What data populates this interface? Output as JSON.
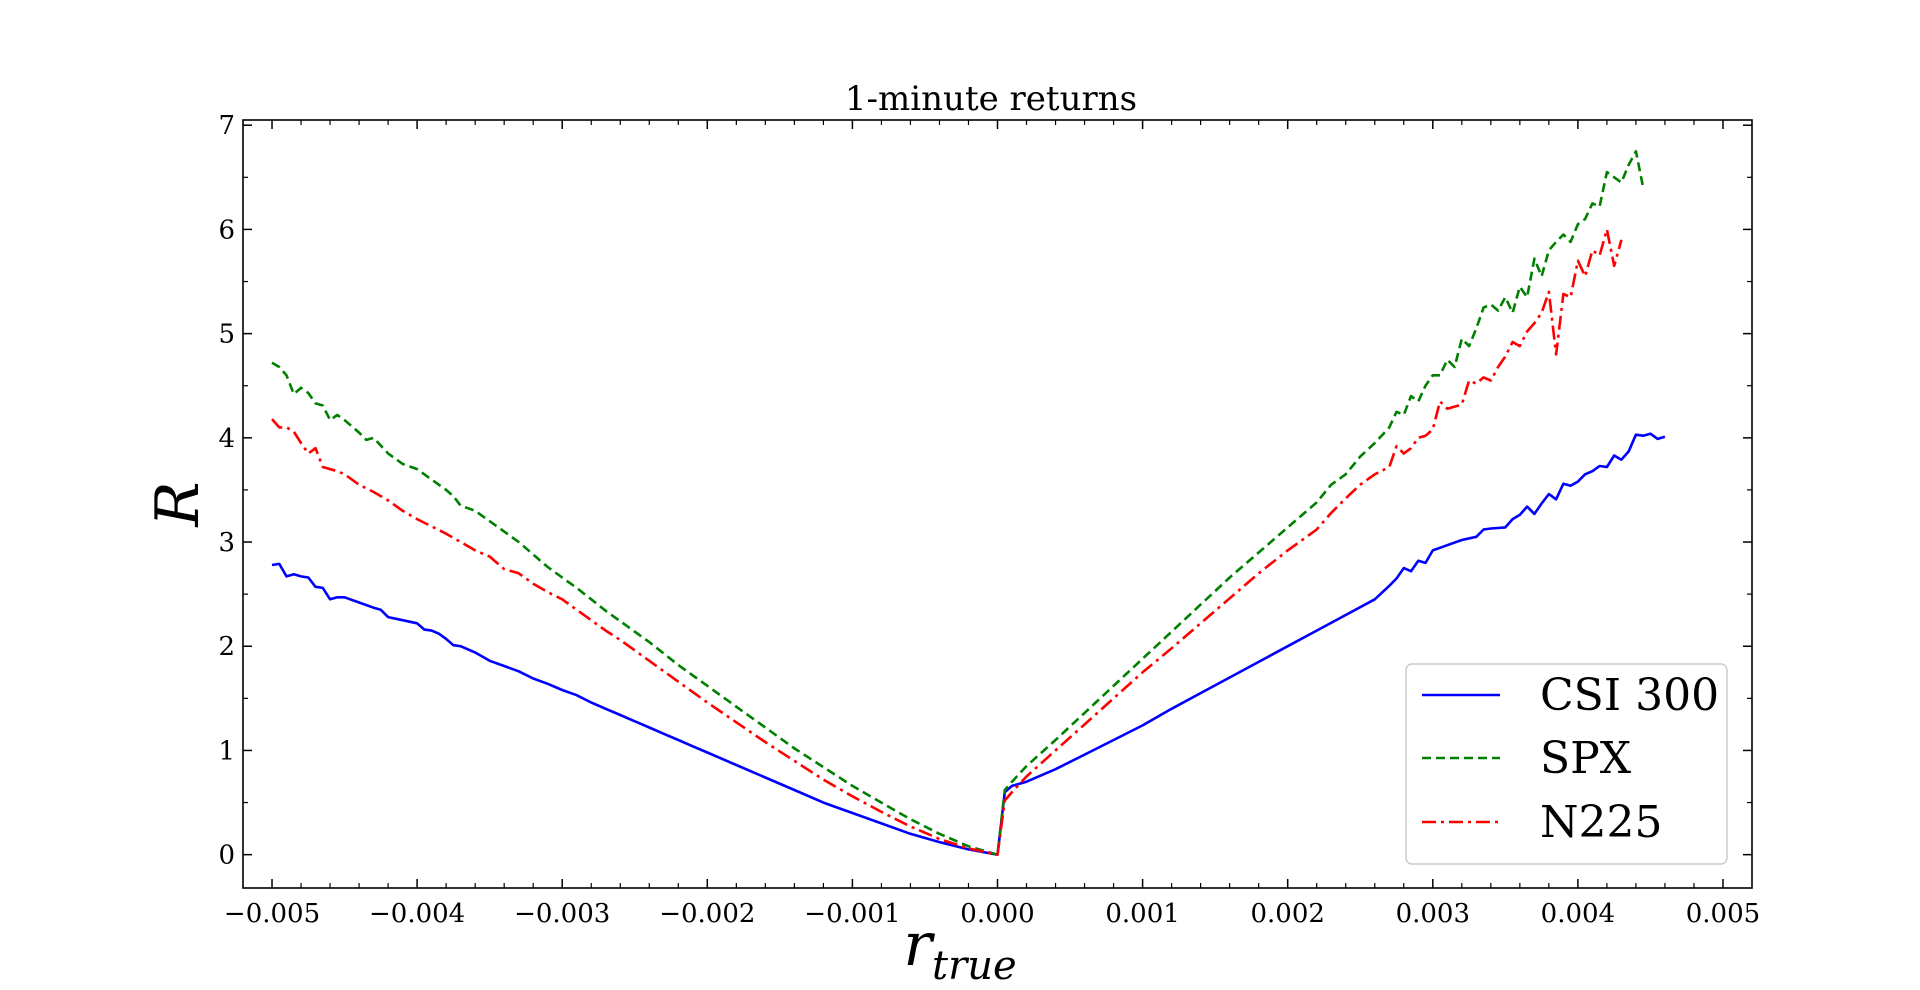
{
  "chart_data": {
    "type": "line",
    "title": "1-minute returns",
    "xlabel_main": "r",
    "xlabel_sub": "true",
    "ylabel": "R",
    "xlim": [
      -0.0052,
      0.0052
    ],
    "ylim": [
      -0.32,
      7.05
    ],
    "x_tick_values": [
      -0.005,
      -0.004,
      -0.003,
      -0.002,
      -0.001,
      0.0,
      0.001,
      0.002,
      0.003,
      0.004,
      0.005
    ],
    "x_tick_labels": [
      "−0.005",
      "−0.004",
      "−0.003",
      "−0.002",
      "−0.001",
      "0.000",
      "0.001",
      "0.002",
      "0.003",
      "0.004",
      "0.005"
    ],
    "y_tick_values": [
      0,
      1,
      2,
      3,
      4,
      5,
      6,
      7
    ],
    "y_tick_labels": [
      "0",
      "1",
      "2",
      "3",
      "4",
      "5",
      "6",
      "7"
    ],
    "grid": false,
    "legend_position": "lower-right",
    "series": [
      {
        "name": "CSI 300",
        "color": "#0000ff",
        "dash": "solid",
        "points": [
          [
            -0.005,
            2.78
          ],
          [
            -0.00495,
            2.79
          ],
          [
            -0.0049,
            2.67
          ],
          [
            -0.00485,
            2.69
          ],
          [
            -0.0048,
            2.67
          ],
          [
            -0.00475,
            2.66
          ],
          [
            -0.0047,
            2.57
          ],
          [
            -0.00465,
            2.56
          ],
          [
            -0.0046,
            2.45
          ],
          [
            -0.00455,
            2.47
          ],
          [
            -0.0045,
            2.47
          ],
          [
            -0.0044,
            2.42
          ],
          [
            -0.0043,
            2.37
          ],
          [
            -0.00425,
            2.35
          ],
          [
            -0.0042,
            2.28
          ],
          [
            -0.0041,
            2.25
          ],
          [
            -0.004,
            2.22
          ],
          [
            -0.00395,
            2.16
          ],
          [
            -0.0039,
            2.15
          ],
          [
            -0.00385,
            2.12
          ],
          [
            -0.0038,
            2.07
          ],
          [
            -0.00375,
            2.01
          ],
          [
            -0.0037,
            2.0
          ],
          [
            -0.0036,
            1.94
          ],
          [
            -0.0035,
            1.86
          ],
          [
            -0.0034,
            1.81
          ],
          [
            -0.0033,
            1.76
          ],
          [
            -0.0032,
            1.69
          ],
          [
            -0.0031,
            1.64
          ],
          [
            -0.003,
            1.58
          ],
          [
            -0.0029,
            1.53
          ],
          [
            -0.0028,
            1.46
          ],
          [
            -0.0027,
            1.4
          ],
          [
            -0.0026,
            1.34
          ],
          [
            -0.0025,
            1.28
          ],
          [
            -0.0024,
            1.22
          ],
          [
            -0.0023,
            1.16
          ],
          [
            -0.0022,
            1.1
          ],
          [
            -0.0021,
            1.04
          ],
          [
            -0.002,
            0.98
          ],
          [
            -0.0018,
            0.86
          ],
          [
            -0.0016,
            0.74
          ],
          [
            -0.0014,
            0.62
          ],
          [
            -0.0012,
            0.5
          ],
          [
            -0.001,
            0.4
          ],
          [
            -0.0008,
            0.3
          ],
          [
            -0.0006,
            0.2
          ],
          [
            -0.0004,
            0.12
          ],
          [
            -0.0002,
            0.05
          ],
          [
            0.0,
            0.0
          ],
          [
            5e-05,
            0.6
          ],
          [
            0.0001,
            0.66
          ],
          [
            0.0002,
            0.7
          ],
          [
            0.0004,
            0.82
          ],
          [
            0.0006,
            0.96
          ],
          [
            0.0008,
            1.1
          ],
          [
            0.001,
            1.24
          ],
          [
            0.0012,
            1.4
          ],
          [
            0.0014,
            1.55
          ],
          [
            0.0016,
            1.7
          ],
          [
            0.0018,
            1.85
          ],
          [
            0.002,
            2.0
          ],
          [
            0.0022,
            2.15
          ],
          [
            0.0024,
            2.3
          ],
          [
            0.0026,
            2.45
          ],
          [
            0.0027,
            2.58
          ],
          [
            0.00275,
            2.65
          ],
          [
            0.0028,
            2.75
          ],
          [
            0.00285,
            2.72
          ],
          [
            0.0029,
            2.82
          ],
          [
            0.00295,
            2.8
          ],
          [
            0.003,
            2.92
          ],
          [
            0.0031,
            2.97
          ],
          [
            0.0032,
            3.02
          ],
          [
            0.0033,
            3.05
          ],
          [
            0.00335,
            3.12
          ],
          [
            0.0034,
            3.13
          ],
          [
            0.0035,
            3.14
          ],
          [
            0.00355,
            3.22
          ],
          [
            0.0036,
            3.26
          ],
          [
            0.00365,
            3.34
          ],
          [
            0.0037,
            3.27
          ],
          [
            0.00375,
            3.37
          ],
          [
            0.0038,
            3.46
          ],
          [
            0.00385,
            3.41
          ],
          [
            0.0039,
            3.56
          ],
          [
            0.00395,
            3.54
          ],
          [
            0.004,
            3.58
          ],
          [
            0.00405,
            3.65
          ],
          [
            0.0041,
            3.68
          ],
          [
            0.00415,
            3.73
          ],
          [
            0.0042,
            3.72
          ],
          [
            0.00425,
            3.83
          ],
          [
            0.0043,
            3.79
          ],
          [
            0.00435,
            3.87
          ],
          [
            0.0044,
            4.03
          ],
          [
            0.00445,
            4.02
          ],
          [
            0.0045,
            4.04
          ],
          [
            0.00455,
            3.99
          ],
          [
            0.0046,
            4.01
          ]
        ]
      },
      {
        "name": "SPX",
        "color": "#008000",
        "dash": "dashed",
        "points": [
          [
            -0.005,
            4.72
          ],
          [
            -0.00495,
            4.68
          ],
          [
            -0.0049,
            4.6
          ],
          [
            -0.00485,
            4.42
          ],
          [
            -0.0048,
            4.48
          ],
          [
            -0.00475,
            4.43
          ],
          [
            -0.0047,
            4.33
          ],
          [
            -0.00465,
            4.31
          ],
          [
            -0.0046,
            4.17
          ],
          [
            -0.00455,
            4.22
          ],
          [
            -0.0045,
            4.17
          ],
          [
            -0.0044,
            4.05
          ],
          [
            -0.00435,
            3.98
          ],
          [
            -0.0043,
            4.0
          ],
          [
            -0.0042,
            3.85
          ],
          [
            -0.0041,
            3.75
          ],
          [
            -0.004,
            3.7
          ],
          [
            -0.0039,
            3.6
          ],
          [
            -0.0038,
            3.5
          ],
          [
            -0.00375,
            3.44
          ],
          [
            -0.0037,
            3.35
          ],
          [
            -0.0036,
            3.3
          ],
          [
            -0.0035,
            3.2
          ],
          [
            -0.0034,
            3.1
          ],
          [
            -0.0033,
            3.0
          ],
          [
            -0.0032,
            2.88
          ],
          [
            -0.0031,
            2.76
          ],
          [
            -0.003,
            2.66
          ],
          [
            -0.0029,
            2.56
          ],
          [
            -0.0028,
            2.45
          ],
          [
            -0.0027,
            2.34
          ],
          [
            -0.0026,
            2.24
          ],
          [
            -0.0025,
            2.14
          ],
          [
            -0.0024,
            2.04
          ],
          [
            -0.0023,
            1.93
          ],
          [
            -0.0022,
            1.82
          ],
          [
            -0.0021,
            1.72
          ],
          [
            -0.002,
            1.62
          ],
          [
            -0.0018,
            1.42
          ],
          [
            -0.0016,
            1.22
          ],
          [
            -0.0014,
            1.02
          ],
          [
            -0.0012,
            0.84
          ],
          [
            -0.001,
            0.66
          ],
          [
            -0.0008,
            0.5
          ],
          [
            -0.0006,
            0.34
          ],
          [
            -0.0004,
            0.2
          ],
          [
            -0.0002,
            0.08
          ],
          [
            0.0,
            0.0
          ],
          [
            5e-05,
            0.62
          ],
          [
            0.0001,
            0.7
          ],
          [
            0.0002,
            0.85
          ],
          [
            0.0004,
            1.1
          ],
          [
            0.0006,
            1.36
          ],
          [
            0.0008,
            1.62
          ],
          [
            0.001,
            1.88
          ],
          [
            0.0012,
            2.14
          ],
          [
            0.0014,
            2.4
          ],
          [
            0.0016,
            2.66
          ],
          [
            0.0018,
            2.9
          ],
          [
            0.002,
            3.14
          ],
          [
            0.0022,
            3.38
          ],
          [
            0.0023,
            3.55
          ],
          [
            0.0024,
            3.65
          ],
          [
            0.0025,
            3.82
          ],
          [
            0.0026,
            3.95
          ],
          [
            0.0027,
            4.1
          ],
          [
            0.00275,
            4.25
          ],
          [
            0.0028,
            4.22
          ],
          [
            0.00285,
            4.4
          ],
          [
            0.0029,
            4.35
          ],
          [
            0.00295,
            4.5
          ],
          [
            0.003,
            4.6
          ],
          [
            0.00305,
            4.6
          ],
          [
            0.0031,
            4.75
          ],
          [
            0.00315,
            4.68
          ],
          [
            0.0032,
            4.95
          ],
          [
            0.00325,
            4.88
          ],
          [
            0.0033,
            5.05
          ],
          [
            0.00335,
            5.25
          ],
          [
            0.0034,
            5.28
          ],
          [
            0.00345,
            5.22
          ],
          [
            0.0035,
            5.35
          ],
          [
            0.00355,
            5.2
          ],
          [
            0.0036,
            5.45
          ],
          [
            0.00365,
            5.35
          ],
          [
            0.0037,
            5.72
          ],
          [
            0.00375,
            5.55
          ],
          [
            0.0038,
            5.8
          ],
          [
            0.00385,
            5.88
          ],
          [
            0.0039,
            5.95
          ],
          [
            0.00395,
            5.88
          ],
          [
            0.004,
            6.05
          ],
          [
            0.00405,
            6.1
          ],
          [
            0.0041,
            6.25
          ],
          [
            0.00415,
            6.22
          ],
          [
            0.0042,
            6.55
          ],
          [
            0.00425,
            6.5
          ],
          [
            0.0043,
            6.45
          ],
          [
            0.00435,
            6.62
          ],
          [
            0.0044,
            6.75
          ],
          [
            0.00445,
            6.4
          ]
        ]
      },
      {
        "name": "N225",
        "color": "#ff0000",
        "dash": "dashdot",
        "points": [
          [
            -0.005,
            4.18
          ],
          [
            -0.00495,
            4.1
          ],
          [
            -0.0049,
            4.1
          ],
          [
            -0.00485,
            4.06
          ],
          [
            -0.0048,
            3.95
          ],
          [
            -0.00475,
            3.85
          ],
          [
            -0.0047,
            3.9
          ],
          [
            -0.00465,
            3.72
          ],
          [
            -0.0046,
            3.7
          ],
          [
            -0.00455,
            3.68
          ],
          [
            -0.0045,
            3.65
          ],
          [
            -0.0044,
            3.55
          ],
          [
            -0.0043,
            3.48
          ],
          [
            -0.0042,
            3.4
          ],
          [
            -0.0041,
            3.3
          ],
          [
            -0.004,
            3.22
          ],
          [
            -0.0039,
            3.15
          ],
          [
            -0.0038,
            3.08
          ],
          [
            -0.0037,
            3.0
          ],
          [
            -0.0036,
            2.92
          ],
          [
            -0.0035,
            2.86
          ],
          [
            -0.0034,
            2.74
          ],
          [
            -0.0033,
            2.7
          ],
          [
            -0.0032,
            2.6
          ],
          [
            -0.0031,
            2.52
          ],
          [
            -0.003,
            2.45
          ],
          [
            -0.0029,
            2.35
          ],
          [
            -0.0028,
            2.25
          ],
          [
            -0.0027,
            2.15
          ],
          [
            -0.0026,
            2.06
          ],
          [
            -0.0025,
            1.96
          ],
          [
            -0.0024,
            1.86
          ],
          [
            -0.0023,
            1.76
          ],
          [
            -0.0022,
            1.66
          ],
          [
            -0.0021,
            1.56
          ],
          [
            -0.002,
            1.46
          ],
          [
            -0.0018,
            1.27
          ],
          [
            -0.0016,
            1.08
          ],
          [
            -0.0014,
            0.9
          ],
          [
            -0.0012,
            0.72
          ],
          [
            -0.001,
            0.56
          ],
          [
            -0.0008,
            0.41
          ],
          [
            -0.0006,
            0.27
          ],
          [
            -0.0004,
            0.15
          ],
          [
            -0.0002,
            0.06
          ],
          [
            0.0,
            0.0
          ],
          [
            5e-05,
            0.52
          ],
          [
            0.0001,
            0.6
          ],
          [
            0.0002,
            0.75
          ],
          [
            0.0004,
            1.0
          ],
          [
            0.0006,
            1.25
          ],
          [
            0.0008,
            1.5
          ],
          [
            0.001,
            1.75
          ],
          [
            0.0012,
            1.98
          ],
          [
            0.0014,
            2.22
          ],
          [
            0.0016,
            2.46
          ],
          [
            0.0018,
            2.7
          ],
          [
            0.002,
            2.92
          ],
          [
            0.0021,
            3.02
          ],
          [
            0.0022,
            3.12
          ],
          [
            0.0023,
            3.28
          ],
          [
            0.0024,
            3.42
          ],
          [
            0.0025,
            3.55
          ],
          [
            0.0026,
            3.65
          ],
          [
            0.0027,
            3.72
          ],
          [
            0.00275,
            3.92
          ],
          [
            0.0028,
            3.85
          ],
          [
            0.00285,
            3.9
          ],
          [
            0.0029,
            4.0
          ],
          [
            0.00295,
            4.02
          ],
          [
            0.003,
            4.08
          ],
          [
            0.00305,
            4.35
          ],
          [
            0.0031,
            4.28
          ],
          [
            0.00315,
            4.3
          ],
          [
            0.0032,
            4.32
          ],
          [
            0.00325,
            4.55
          ],
          [
            0.0033,
            4.52
          ],
          [
            0.00335,
            4.58
          ],
          [
            0.0034,
            4.55
          ],
          [
            0.00345,
            4.68
          ],
          [
            0.0035,
            4.78
          ],
          [
            0.00355,
            4.92
          ],
          [
            0.0036,
            4.88
          ],
          [
            0.00365,
            5.02
          ],
          [
            0.0037,
            5.1
          ],
          [
            0.00375,
            5.2
          ],
          [
            0.0038,
            5.4
          ],
          [
            0.00385,
            4.8
          ],
          [
            0.0039,
            5.38
          ],
          [
            0.00395,
            5.35
          ],
          [
            0.004,
            5.7
          ],
          [
            0.00405,
            5.55
          ],
          [
            0.0041,
            5.8
          ],
          [
            0.00415,
            5.75
          ],
          [
            0.0042,
            6.0
          ],
          [
            0.00425,
            5.65
          ],
          [
            0.0043,
            5.9
          ]
        ]
      }
    ]
  }
}
